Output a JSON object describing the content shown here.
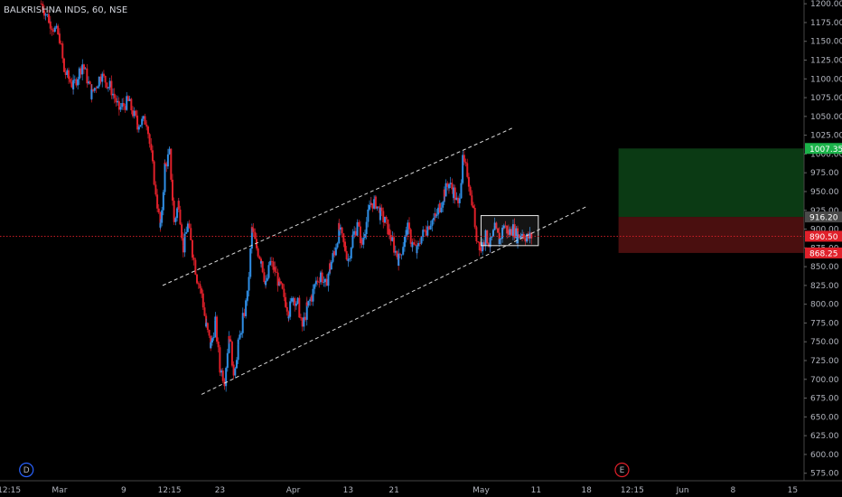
{
  "chart_data": {
    "type": "candlestick",
    "title": "BALKRISHNA INDS, 60, NSE",
    "ylim": [
      565,
      1205
    ],
    "y_ticks": [
      575,
      600,
      625,
      650,
      675,
      700,
      725,
      750,
      775,
      800,
      825,
      850,
      875,
      900,
      925,
      950,
      975,
      1000,
      1025,
      1050,
      1075,
      1100,
      1125,
      1150,
      1175,
      1200
    ],
    "x_ticks": [
      {
        "label": "12:15",
        "x": 0
      },
      {
        "label": "Mar",
        "x": 11
      },
      {
        "label": "9",
        "x": 25
      },
      {
        "label": "12:15",
        "x": 35
      },
      {
        "label": "23",
        "x": 46
      },
      {
        "label": "Apr",
        "x": 62
      },
      {
        "label": "13",
        "x": 74
      },
      {
        "label": "21",
        "x": 84
      },
      {
        "label": "May",
        "x": 103
      },
      {
        "label": "11",
        "x": 115
      },
      {
        "label": "18",
        "x": 126
      },
      {
        "label": "12:15",
        "x": 136
      },
      {
        "label": "Jun",
        "x": 147
      },
      {
        "label": "8",
        "x": 158
      },
      {
        "label": "15",
        "x": 171
      }
    ],
    "xlim": [
      -2,
      173.5
    ],
    "close_path": [
      [
        7,
        1200
      ],
      [
        9,
        1175
      ],
      [
        11,
        1155
      ],
      [
        12,
        1110
      ],
      [
        14,
        1090
      ],
      [
        16,
        1120
      ],
      [
        18,
        1080
      ],
      [
        20,
        1105
      ],
      [
        22,
        1090
      ],
      [
        24,
        1060
      ],
      [
        26,
        1070
      ],
      [
        28,
        1040
      ],
      [
        30,
        1045
      ],
      [
        32,
        950
      ],
      [
        33,
        900
      ],
      [
        34,
        985
      ],
      [
        35,
        1000
      ],
      [
        36,
        910
      ],
      [
        37,
        935
      ],
      [
        38,
        875
      ],
      [
        39,
        905
      ],
      [
        40,
        870
      ],
      [
        41,
        835
      ],
      [
        42,
        815
      ],
      [
        43,
        770
      ],
      [
        44,
        745
      ],
      [
        45,
        775
      ],
      [
        46,
        715
      ],
      [
        47,
        700
      ],
      [
        48,
        760
      ],
      [
        49,
        710
      ],
      [
        50,
        745
      ],
      [
        51,
        780
      ],
      [
        52,
        810
      ],
      [
        53,
        900
      ],
      [
        54,
        875
      ],
      [
        55,
        860
      ],
      [
        56,
        825
      ],
      [
        57,
        855
      ],
      [
        58,
        845
      ],
      [
        59,
        825
      ],
      [
        60,
        810
      ],
      [
        61,
        790
      ],
      [
        62,
        810
      ],
      [
        63,
        800
      ],
      [
        64,
        770
      ],
      [
        65,
        795
      ],
      [
        66,
        810
      ],
      [
        67,
        830
      ],
      [
        68,
        840
      ],
      [
        69,
        825
      ],
      [
        70,
        850
      ],
      [
        71,
        870
      ],
      [
        72,
        900
      ],
      [
        73,
        880
      ],
      [
        74,
        860
      ],
      [
        75,
        890
      ],
      [
        76,
        905
      ],
      [
        77,
        880
      ],
      [
        78,
        910
      ],
      [
        79,
        935
      ],
      [
        80,
        935
      ],
      [
        81,
        920
      ],
      [
        82,
        910
      ],
      [
        83,
        895
      ],
      [
        84,
        875
      ],
      [
        85,
        860
      ],
      [
        86,
        880
      ],
      [
        87,
        900
      ],
      [
        88,
        880
      ],
      [
        89,
        870
      ],
      [
        90,
        890
      ],
      [
        91,
        900
      ],
      [
        92,
        910
      ],
      [
        93,
        915
      ],
      [
        94,
        930
      ],
      [
        95,
        950
      ],
      [
        96,
        960
      ],
      [
        97,
        950
      ],
      [
        98,
        930
      ],
      [
        99,
        990
      ],
      [
        100,
        975
      ],
      [
        101,
        940
      ],
      [
        102,
        890
      ],
      [
        103,
        875
      ],
      [
        104,
        890
      ],
      [
        105,
        880
      ],
      [
        106,
        900
      ],
      [
        107,
        885
      ],
      [
        108,
        905
      ],
      [
        109,
        895
      ],
      [
        110,
        900
      ],
      [
        111,
        890
      ],
      [
        112,
        895
      ],
      [
        113,
        888
      ],
      [
        114,
        890
      ]
    ],
    "channel_lines": [
      {
        "from": [
          33.5,
          825
        ],
        "to": [
          110,
          1035
        ]
      },
      {
        "from": [
          42,
          680
        ],
        "to": [
          126,
          930
        ]
      }
    ],
    "consolidation_box": {
      "x0": 103,
      "x1": 115.5,
      "y0": 878,
      "y1": 918
    },
    "position": {
      "x0": 133,
      "x1": 173.5,
      "target": 1007.35,
      "entry": 916.2,
      "stop": 868.25,
      "profit_color": "#0b3a14",
      "loss_color": "#4a0f0f"
    },
    "current_price": 890.5,
    "price_tags": [
      {
        "label": "1007.35",
        "value": 1007.35,
        "color": "#1bb24a"
      },
      {
        "label": "916.20",
        "value": 916.2,
        "color": "#4a4a4a"
      },
      {
        "label": "890.50",
        "value": 890.5,
        "color": "#e0202a"
      },
      {
        "label": "868.25",
        "value": 868.25,
        "color": "#e0202a"
      }
    ],
    "markers": [
      {
        "label": "D",
        "x": 1,
        "color": "#2962ff"
      },
      {
        "label": "E",
        "x": 131,
        "color": "#e0202a"
      }
    ],
    "up_color": "#2f8ee5",
    "down_color": "#e0202a"
  }
}
